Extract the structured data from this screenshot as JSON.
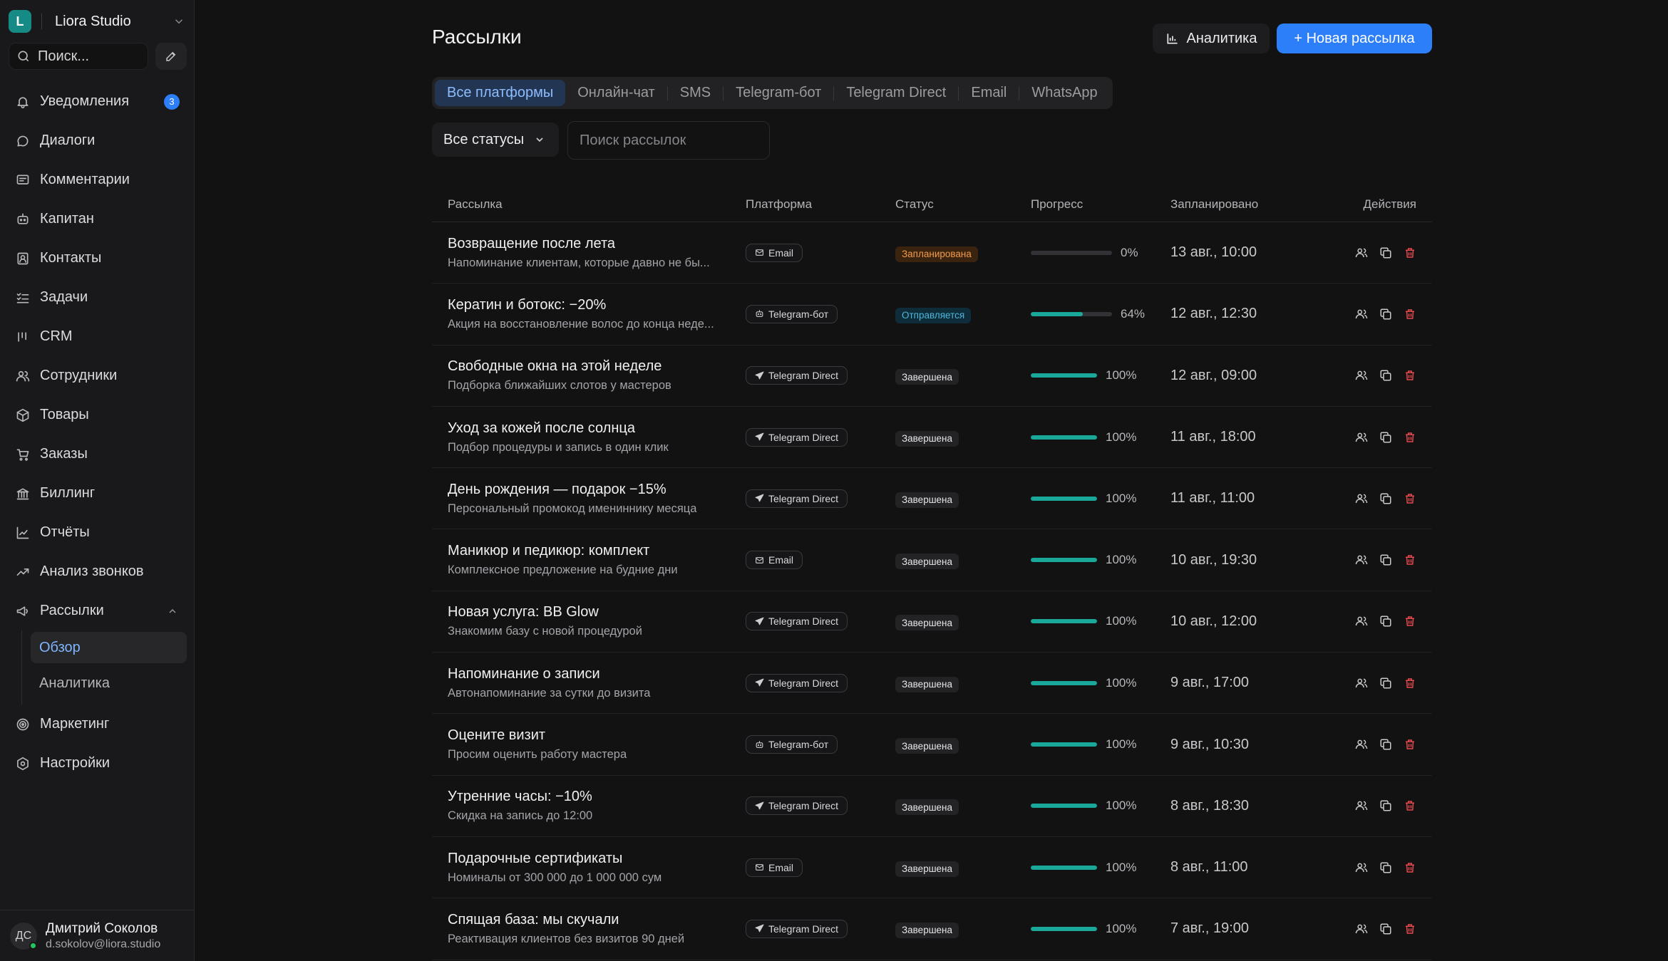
{
  "workspace": {
    "initial": "L",
    "name": "Liora Studio"
  },
  "sidebar": {
    "search_label": "Поиск...",
    "items": [
      {
        "label": "Уведомления",
        "icon": "bell-icon",
        "badge": "3"
      },
      {
        "label": "Диалоги",
        "icon": "chat-icon"
      },
      {
        "label": "Комментарии",
        "icon": "comment-icon"
      },
      {
        "label": "Капитан",
        "icon": "bot-icon"
      },
      {
        "label": "Контакты",
        "icon": "contacts-icon"
      },
      {
        "label": "Задачи",
        "icon": "tasks-icon"
      },
      {
        "label": "CRM",
        "icon": "crm-icon"
      },
      {
        "label": "Сотрудники",
        "icon": "users-icon"
      },
      {
        "label": "Товары",
        "icon": "box-icon"
      },
      {
        "label": "Заказы",
        "icon": "cart-icon"
      },
      {
        "label": "Биллинг",
        "icon": "bank-icon"
      },
      {
        "label": "Отчёты",
        "icon": "chart-line-icon"
      },
      {
        "label": "Анализ звонков",
        "icon": "trend-icon"
      },
      {
        "label": "Рассылки",
        "icon": "megaphone-icon"
      },
      {
        "label": "Маркетинг",
        "icon": "target-icon"
      },
      {
        "label": "Настройки",
        "icon": "settings-icon"
      }
    ],
    "sub_items": [
      {
        "label": "Обзор",
        "active": true
      },
      {
        "label": "Аналитика",
        "active": false
      }
    ]
  },
  "profile": {
    "initials": "ДС",
    "name": "Дмитрий Соколов",
    "email": "d.sokolov@liora.studio",
    "status_color": "#22c55e"
  },
  "header": {
    "title": "Рассылки",
    "analytics_label": "Аналитика",
    "new_label": "+ Новая рассылка"
  },
  "tabs": [
    {
      "label": "Все платформы",
      "active": true
    },
    {
      "label": "Онлайн-чат"
    },
    {
      "label": "SMS"
    },
    {
      "label": "Telegram-бот"
    },
    {
      "label": "Telegram Direct"
    },
    {
      "label": "Email"
    },
    {
      "label": "WhatsApp"
    }
  ],
  "filters": {
    "status_label": "Все статусы",
    "search_placeholder": "Поиск рассылок"
  },
  "table": {
    "columns": [
      "Рассылка",
      "Платформа",
      "Статус",
      "Прогресс",
      "Запланировано",
      "Действия"
    ],
    "rows": [
      {
        "title": "Возвращение после лета",
        "desc": "Напоминание клиентам, которые давно не бы...",
        "platform": "Email",
        "platform_icon": "mail-icon",
        "status": "Запланирована",
        "status_kind": "sched",
        "progress": 0,
        "progress_label": "0%",
        "date": "13 авг., 10:00"
      },
      {
        "title": "Кератин и ботокс: −20%",
        "desc": "Акция на восстановление волос до конца неде...",
        "platform": "Telegram-бот",
        "platform_icon": "bot-icon",
        "status": "Отправляется",
        "status_kind": "sending",
        "progress": 64,
        "progress_label": "64%",
        "date": "12 авг., 12:30"
      },
      {
        "title": "Свободные окна на этой неделе",
        "desc": "Подборка ближайших слотов у мастеров",
        "platform": "Telegram Direct",
        "platform_icon": "send-icon",
        "status": "Завершена",
        "status_kind": "done",
        "progress": 100,
        "progress_label": "100%",
        "date": "12 авг., 09:00"
      },
      {
        "title": "Уход за кожей после солнца",
        "desc": "Подбор процедуры и запись в один клик",
        "platform": "Telegram Direct",
        "platform_icon": "send-icon",
        "status": "Завершена",
        "status_kind": "done",
        "progress": 100,
        "progress_label": "100%",
        "date": "11 авг., 18:00"
      },
      {
        "title": "День рождения — подарок −15%",
        "desc": "Персональный промокод имениннику месяца",
        "platform": "Telegram Direct",
        "platform_icon": "send-icon",
        "status": "Завершена",
        "status_kind": "done",
        "progress": 100,
        "progress_label": "100%",
        "date": "11 авг., 11:00"
      },
      {
        "title": "Маникюр и педикюр: комплект",
        "desc": "Комплексное предложение на будние дни",
        "platform": "Email",
        "platform_icon": "mail-icon",
        "status": "Завершена",
        "status_kind": "done",
        "progress": 100,
        "progress_label": "100%",
        "date": "10 авг., 19:30"
      },
      {
        "title": "Новая услуга: BB Glow",
        "desc": "Знакомим базу с новой процедурой",
        "platform": "Telegram Direct",
        "platform_icon": "send-icon",
        "status": "Завершена",
        "status_kind": "done",
        "progress": 100,
        "progress_label": "100%",
        "date": "10 авг., 12:00"
      },
      {
        "title": "Напоминание о записи",
        "desc": "Автонапоминание за сутки до визита",
        "platform": "Telegram Direct",
        "platform_icon": "send-icon",
        "status": "Завершена",
        "status_kind": "done",
        "progress": 100,
        "progress_label": "100%",
        "date": "9 авг., 17:00"
      },
      {
        "title": "Оцените визит",
        "desc": "Просим оценить работу мастера",
        "platform": "Telegram-бот",
        "platform_icon": "bot-icon",
        "status": "Завершена",
        "status_kind": "done",
        "progress": 100,
        "progress_label": "100%",
        "date": "9 авг., 10:30"
      },
      {
        "title": "Утренние часы: −10%",
        "desc": "Скидка на запись до 12:00",
        "platform": "Telegram Direct",
        "platform_icon": "send-icon",
        "status": "Завершена",
        "status_kind": "done",
        "progress": 100,
        "progress_label": "100%",
        "date": "8 авг., 18:30"
      },
      {
        "title": "Подарочные сертификаты",
        "desc": "Номиналы от 300 000 до 1 000 000 сум",
        "platform": "Email",
        "platform_icon": "mail-icon",
        "status": "Завершена",
        "status_kind": "done",
        "progress": 100,
        "progress_label": "100%",
        "date": "8 авг., 11:00"
      },
      {
        "title": "Спящая база: мы скучали",
        "desc": "Реактивация клиентов без визитов 90 дней",
        "platform": "Telegram Direct",
        "platform_icon": "send-icon",
        "status": "Завершена",
        "status_kind": "done",
        "progress": 100,
        "progress_label": "100%",
        "date": "7 авг., 19:00"
      }
    ]
  },
  "colors": {
    "accent": "#2d7ff9",
    "progress": "#1aa89a",
    "delete": "#e5484d",
    "scheduled": "#f29a4a",
    "sending": "#4cb7d9"
  }
}
